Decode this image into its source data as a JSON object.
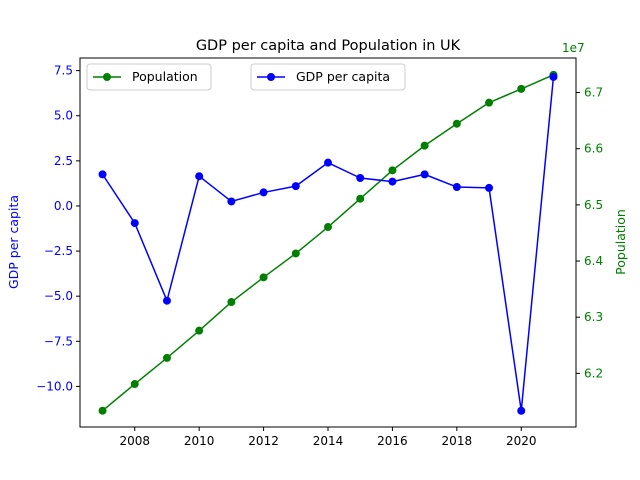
{
  "chart_data": {
    "type": "line",
    "title": "GDP per capita and Population in UK",
    "x": [
      2007,
      2008,
      2009,
      2010,
      2011,
      2012,
      2013,
      2014,
      2015,
      2016,
      2017,
      2018,
      2019,
      2020,
      2021
    ],
    "x_ticks": [
      "2008",
      "2010",
      "2012",
      "2014",
      "2016",
      "2018",
      "2020"
    ],
    "x_tick_values": [
      2008,
      2010,
      2012,
      2014,
      2016,
      2018,
      2020
    ],
    "xlim": [
      2006.3,
      2021.7
    ],
    "left_axis": {
      "label": "GDP per capita",
      "color": "#0000ff",
      "ylim": [
        -12.25,
        8.2
      ],
      "ticks": [
        "−10.0",
        "−7.5",
        "−5.0",
        "−2.5",
        "0.0",
        "2.5",
        "5.0",
        "7.5"
      ],
      "tick_values": [
        -10,
        -7.5,
        -5,
        -2.5,
        0,
        2.5,
        5,
        7.5
      ]
    },
    "right_axis": {
      "label": "Population",
      "color": "#008000",
      "offset_text": "1e7",
      "ylim": [
        6.1045,
        6.7615
      ],
      "ticks": [
        "6.2",
        "6.3",
        "6.4",
        "6.5",
        "6.6",
        "6.7"
      ],
      "tick_values": [
        6.2,
        6.3,
        6.4,
        6.5,
        6.6,
        6.7
      ]
    },
    "series": [
      {
        "name": "GDP per capita",
        "axis": "left",
        "color": "#0000ff",
        "values": [
          1.75,
          -0.95,
          -5.25,
          1.65,
          0.25,
          0.75,
          1.1,
          2.4,
          1.55,
          1.35,
          1.75,
          1.05,
          1.0,
          -11.35,
          7.15
        ]
      },
      {
        "name": "Population",
        "axis": "right",
        "color": "#008000",
        "values": [
          6.1335,
          6.181,
          6.2275,
          6.276,
          6.327,
          6.371,
          6.4135,
          6.4605,
          6.511,
          6.5615,
          6.6055,
          6.6445,
          6.682,
          6.7065,
          6.7315
        ]
      }
    ],
    "legend": [
      {
        "label": "Population",
        "color": "#008000",
        "position": "top-left"
      },
      {
        "label": "GDP per capita",
        "color": "#0000ff",
        "position": "top-center"
      }
    ],
    "grid": false
  }
}
